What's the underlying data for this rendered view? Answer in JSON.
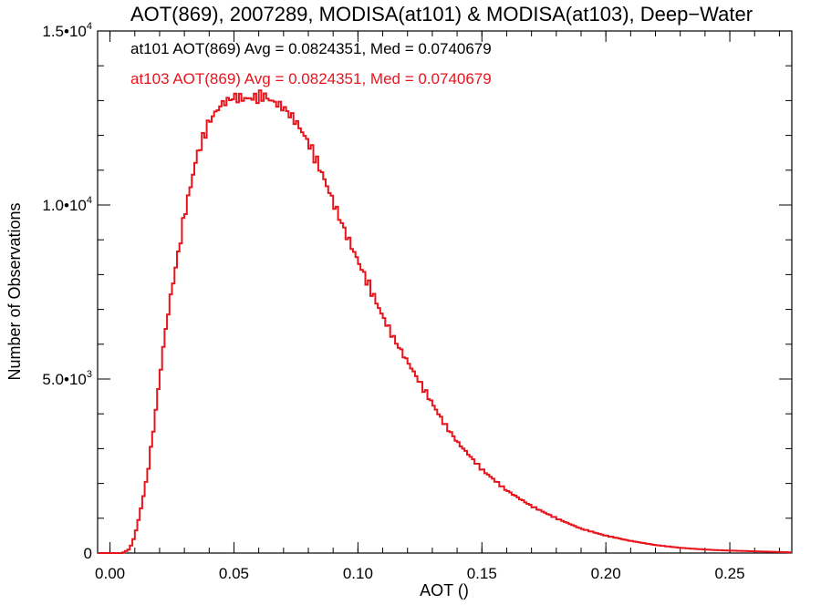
{
  "chart_data": {
    "type": "step-histogram",
    "title": "AOT(869), 2007289, MODISA(at101) & MODISA(at103), Deep−Water",
    "xlabel": "AOT ()",
    "ylabel": "Number of Observations",
    "xlim": [
      -0.005,
      0.275
    ],
    "ylim": [
      0,
      15000
    ],
    "grid": false,
    "x_ticks": [
      {
        "value": 0.0,
        "label": "0.00"
      },
      {
        "value": 0.05,
        "label": "0.05"
      },
      {
        "value": 0.1,
        "label": "0.10"
      },
      {
        "value": 0.15,
        "label": "0.15"
      },
      {
        "value": 0.2,
        "label": "0.20"
      },
      {
        "value": 0.25,
        "label": "0.25"
      }
    ],
    "y_ticks": [
      {
        "value": 0,
        "mant": "0",
        "exp": ""
      },
      {
        "value": 5000,
        "mant": "5.0•10",
        "exp": "3"
      },
      {
        "value": 10000,
        "mant": "1.0•10",
        "exp": "4"
      },
      {
        "value": 15000,
        "mant": "1.5•10",
        "exp": "4"
      }
    ],
    "annotations": [
      {
        "text": "at101 AOT(869) Avg = 0.0824351, Med = 0.0740679",
        "color": "#000000"
      },
      {
        "text": "at103 AOT(869) Avg = 0.0824351, Med = 0.0740679",
        "color": "#e8141c"
      }
    ],
    "series": [
      {
        "color": "#e8141c",
        "x": [
          -0.005,
          0.005,
          0.008,
          0.01,
          0.012,
          0.015,
          0.018,
          0.02,
          0.022,
          0.025,
          0.028,
          0.03,
          0.033,
          0.035,
          0.038,
          0.04,
          0.043,
          0.045,
          0.05,
          0.055,
          0.06,
          0.062,
          0.065,
          0.07,
          0.075,
          0.08,
          0.085,
          0.09,
          0.095,
          0.1,
          0.105,
          0.11,
          0.115,
          0.12,
          0.125,
          0.13,
          0.135,
          0.14,
          0.145,
          0.15,
          0.155,
          0.16,
          0.17,
          0.18,
          0.19,
          0.2,
          0.21,
          0.22,
          0.23,
          0.24,
          0.25,
          0.26,
          0.27,
          0.275
        ],
        "y": [
          0,
          0,
          120,
          500,
          1100,
          2200,
          3800,
          5000,
          6200,
          7600,
          8800,
          9700,
          10700,
          11400,
          12000,
          12400,
          12700,
          12900,
          13100,
          13050,
          13100,
          13150,
          13000,
          12800,
          12400,
          11800,
          11000,
          10100,
          9200,
          8400,
          7600,
          6800,
          6100,
          5500,
          4900,
          4300,
          3700,
          3200,
          2800,
          2400,
          2100,
          1800,
          1350,
          1000,
          700,
          500,
          350,
          230,
          150,
          100,
          70,
          50,
          30,
          20
        ]
      }
    ]
  }
}
